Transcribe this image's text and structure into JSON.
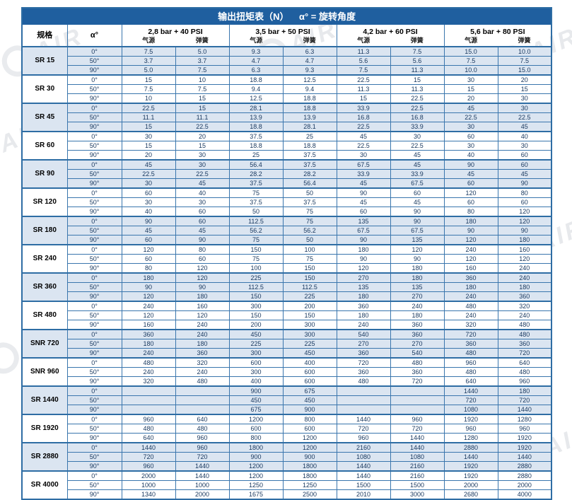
{
  "title": "输出扭矩表（N）    α° = 旋转角度",
  "watermark": {
    "text": "AIR"
  },
  "colors": {
    "header_bar": "#1f5f9f",
    "border_blue": "#3a76ad",
    "group_separator": "#2e6da4",
    "shaded_row": "#dbe5f1",
    "text_navy": "#17375e"
  },
  "columns": {
    "spec": "规格",
    "angle": "α°",
    "groups": [
      {
        "label": "2,8 bar + 40 PSI",
        "sub": [
          "气源",
          "弹簧"
        ]
      },
      {
        "label": "3,5 bar + 50 PSI",
        "sub": [
          "气源",
          "弹簧"
        ]
      },
      {
        "label": "4,2 bar + 60 PSI",
        "sub": [
          "气源",
          "弹簧"
        ]
      },
      {
        "label": "5,6 bar + 80 PSI",
        "sub": [
          "气源",
          "弹簧"
        ]
      }
    ]
  },
  "rows": [
    {
      "spec": "SR 15",
      "angles": [
        {
          "angle": "0°",
          "values": [
            "7.5",
            "5.0",
            "9.3",
            "6.3",
            "11.3",
            "7.5",
            "15.0",
            "10.0"
          ]
        },
        {
          "angle": "50°",
          "values": [
            "3.7",
            "3.7",
            "4.7",
            "4.7",
            "5.6",
            "5.6",
            "7.5",
            "7.5"
          ]
        },
        {
          "angle": "90°",
          "values": [
            "5.0",
            "7.5",
            "6.3",
            "9.3",
            "7.5",
            "11.3",
            "10.0",
            "15.0"
          ]
        }
      ]
    },
    {
      "spec": "SR 30",
      "angles": [
        {
          "angle": "0°",
          "values": [
            "15",
            "10",
            "18.8",
            "12.5",
            "22.5",
            "15",
            "30",
            "20"
          ]
        },
        {
          "angle": "50°",
          "values": [
            "7.5",
            "7.5",
            "9.4",
            "9.4",
            "11.3",
            "11.3",
            "15",
            "15"
          ]
        },
        {
          "angle": "90°",
          "values": [
            "10",
            "15",
            "12.5",
            "18.8",
            "15",
            "22.5",
            "20",
            "30"
          ]
        }
      ]
    },
    {
      "spec": "SR 45",
      "angles": [
        {
          "angle": "0°",
          "values": [
            "22.5",
            "15",
            "28.1",
            "18.8",
            "33.9",
            "22.5",
            "45",
            "30"
          ]
        },
        {
          "angle": "50°",
          "values": [
            "11.1",
            "11.1",
            "13.9",
            "13.9",
            "16.8",
            "16.8",
            "22.5",
            "22.5"
          ]
        },
        {
          "angle": "90°",
          "values": [
            "15",
            "22.5",
            "18.8",
            "28.1",
            "22.5",
            "33.9",
            "30",
            "45"
          ]
        }
      ]
    },
    {
      "spec": "SR 60",
      "angles": [
        {
          "angle": "0°",
          "values": [
            "30",
            "20",
            "37.5",
            "25",
            "45",
            "30",
            "60",
            "40"
          ]
        },
        {
          "angle": "50°",
          "values": [
            "15",
            "15",
            "18.8",
            "18.8",
            "22.5",
            "22.5",
            "30",
            "30"
          ]
        },
        {
          "angle": "90°",
          "values": [
            "20",
            "30",
            "25",
            "37.5",
            "30",
            "45",
            "40",
            "60"
          ]
        }
      ]
    },
    {
      "spec": "SR 90",
      "angles": [
        {
          "angle": "0°",
          "values": [
            "45",
            "30",
            "56.4",
            "37.5",
            "67.5",
            "45",
            "90",
            "60"
          ]
        },
        {
          "angle": "50°",
          "values": [
            "22.5",
            "22.5",
            "28.2",
            "28.2",
            "33.9",
            "33.9",
            "45",
            "45"
          ]
        },
        {
          "angle": "90°",
          "values": [
            "30",
            "45",
            "37.5",
            "56.4",
            "45",
            "67.5",
            "60",
            "90"
          ]
        }
      ]
    },
    {
      "spec": "SR 120",
      "angles": [
        {
          "angle": "0°",
          "values": [
            "60",
            "40",
            "75",
            "50",
            "90",
            "60",
            "120",
            "80"
          ]
        },
        {
          "angle": "50°",
          "values": [
            "30",
            "30",
            "37.5",
            "37.5",
            "45",
            "45",
            "60",
            "60"
          ]
        },
        {
          "angle": "90°",
          "values": [
            "40",
            "60",
            "50",
            "75",
            "60",
            "90",
            "80",
            "120"
          ]
        }
      ]
    },
    {
      "spec": "SR 180",
      "angles": [
        {
          "angle": "0°",
          "values": [
            "90",
            "60",
            "112.5",
            "75",
            "135",
            "90",
            "180",
            "120"
          ]
        },
        {
          "angle": "50°",
          "values": [
            "45",
            "45",
            "56.2",
            "56.2",
            "67.5",
            "67.5",
            "90",
            "90"
          ]
        },
        {
          "angle": "90°",
          "values": [
            "60",
            "90",
            "75",
            "50",
            "90",
            "135",
            "120",
            "180"
          ]
        }
      ]
    },
    {
      "spec": "SR 240",
      "angles": [
        {
          "angle": "0°",
          "values": [
            "120",
            "80",
            "150",
            "100",
            "180",
            "120",
            "240",
            "160"
          ],
          "dashed": true
        },
        {
          "angle": "50°",
          "values": [
            "60",
            "60",
            "75",
            "75",
            "90",
            "90",
            "120",
            "120"
          ]
        },
        {
          "angle": "90°",
          "values": [
            "80",
            "120",
            "100",
            "150",
            "120",
            "180",
            "160",
            "240"
          ]
        }
      ]
    },
    {
      "spec": "SR 360",
      "angles": [
        {
          "angle": "0°",
          "values": [
            "180",
            "120",
            "225",
            "150",
            "270",
            "180",
            "360",
            "240"
          ]
        },
        {
          "angle": "50°",
          "values": [
            "90",
            "90",
            "112.5",
            "112.5",
            "135",
            "135",
            "180",
            "180"
          ]
        },
        {
          "angle": "90°",
          "values": [
            "120",
            "180",
            "150",
            "225",
            "180",
            "270",
            "240",
            "360"
          ]
        }
      ]
    },
    {
      "spec": "SR 480",
      "angles": [
        {
          "angle": "0°",
          "values": [
            "240",
            "160",
            "300",
            "200",
            "360",
            "240",
            "480",
            "320"
          ]
        },
        {
          "angle": "50°",
          "values": [
            "120",
            "120",
            "150",
            "150",
            "180",
            "180",
            "240",
            "240"
          ]
        },
        {
          "angle": "90°",
          "values": [
            "160",
            "240",
            "200",
            "300",
            "240",
            "360",
            "320",
            "480"
          ]
        }
      ]
    },
    {
      "spec": "SNR 720",
      "angles": [
        {
          "angle": "0°",
          "values": [
            "360",
            "240",
            "450",
            "300",
            "540",
            "360",
            "720",
            "480"
          ]
        },
        {
          "angle": "50°",
          "values": [
            "180",
            "180",
            "225",
            "225",
            "270",
            "270",
            "360",
            "360"
          ]
        },
        {
          "angle": "90°",
          "values": [
            "240",
            "360",
            "300",
            "450",
            "360",
            "540",
            "480",
            "720"
          ]
        }
      ]
    },
    {
      "spec": "SNR 960",
      "angles": [
        {
          "angle": "0°",
          "values": [
            "480",
            "320",
            "600",
            "400",
            "720",
            "480",
            "960",
            "640"
          ]
        },
        {
          "angle": "50°",
          "values": [
            "240",
            "240",
            "300",
            "600",
            "360",
            "360",
            "480",
            "480"
          ]
        },
        {
          "angle": "90°",
          "values": [
            "320",
            "480",
            "400",
            "600",
            "480",
            "720",
            "640",
            "960"
          ]
        }
      ]
    },
    {
      "spec": "SR 1440",
      "angles": [
        {
          "angle": "0°",
          "values": [
            "",
            "",
            "900",
            "675",
            "",
            "",
            "1440",
            "180"
          ]
        },
        {
          "angle": "50°",
          "values": [
            "",
            "",
            "450",
            "450",
            "",
            "",
            "720",
            "720"
          ]
        },
        {
          "angle": "90°",
          "values": [
            "",
            "",
            "675",
            "900",
            "",
            "",
            "1080",
            "1440"
          ]
        }
      ]
    },
    {
      "spec": "SR 1920",
      "angles": [
        {
          "angle": "0°",
          "values": [
            "960",
            "640",
            "1200",
            "800",
            "1440",
            "960",
            "1920",
            "1280"
          ]
        },
        {
          "angle": "50°",
          "values": [
            "480",
            "480",
            "600",
            "600",
            "720",
            "720",
            "960",
            "960"
          ]
        },
        {
          "angle": "90°",
          "values": [
            "640",
            "960",
            "800",
            "1200",
            "960",
            "1440",
            "1280",
            "1920"
          ]
        }
      ]
    },
    {
      "spec": "SR 2880",
      "angles": [
        {
          "angle": "0°",
          "values": [
            "1440",
            "960",
            "1800",
            "1200",
            "2160",
            "1440",
            "2880",
            "1920"
          ]
        },
        {
          "angle": "50°",
          "values": [
            "720",
            "720",
            "900",
            "900",
            "1080",
            "1080",
            "1440",
            "1440"
          ]
        },
        {
          "angle": "90°",
          "values": [
            "960",
            "1440",
            "1200",
            "1800",
            "1440",
            "2160",
            "1920",
            "2880"
          ]
        }
      ]
    },
    {
      "spec": "SR 4000",
      "angles": [
        {
          "angle": "0°",
          "values": [
            "2000",
            "1440",
            "1200",
            "1800",
            "1440",
            "2160",
            "1920",
            "2880"
          ]
        },
        {
          "angle": "50°",
          "values": [
            "1000",
            "1000",
            "1250",
            "1250",
            "1500",
            "1500",
            "2000",
            "2000"
          ]
        },
        {
          "angle": "90°",
          "values": [
            "1340",
            "2000",
            "1675",
            "2500",
            "2010",
            "3000",
            "2680",
            "4000"
          ]
        }
      ]
    }
  ]
}
